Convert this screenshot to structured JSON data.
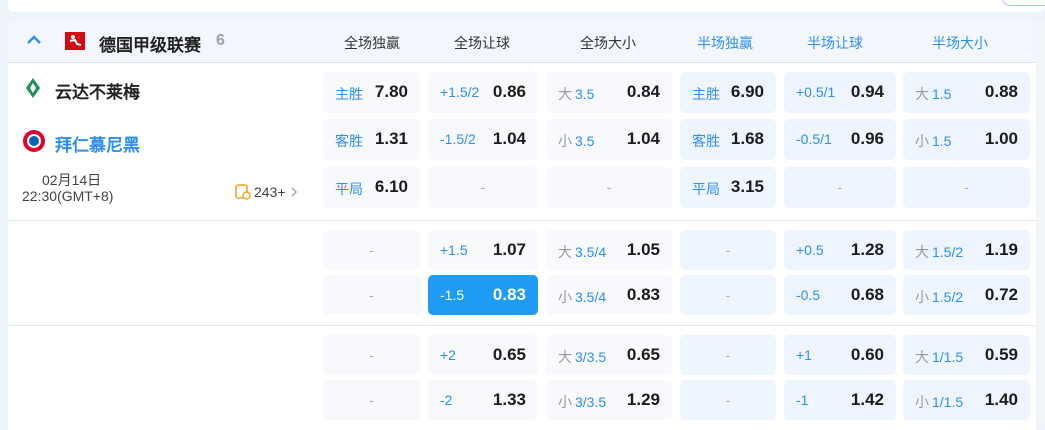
{
  "league": {
    "name": "德国甲级联赛",
    "count": "6"
  },
  "columns": [
    "全场独赢",
    "全场让球",
    "全场大小",
    "半场独赢",
    "半场让球",
    "半场大小"
  ],
  "match": {
    "home": "云达不莱梅",
    "away": "拜仁慕尼黑",
    "date": "02月14日",
    "time": "22:30(GMT+8)",
    "markets": "243+"
  },
  "colors": {
    "accent": "#2f8ff0",
    "selected": "#1e9bf5",
    "league_logo": "#d20a11"
  },
  "blocks": [
    {
      "rows": [
        [
          {
            "line": "主胜",
            "odds": "7.80"
          },
          {
            "line": "+1.5/2",
            "odds": "0.86"
          },
          {
            "prefix": "大",
            "line": "3.5",
            "odds": "0.84"
          },
          {
            "line": "主胜",
            "odds": "6.90"
          },
          {
            "line": "+0.5/1",
            "odds": "0.94"
          },
          {
            "prefix": "大",
            "line": "1.5",
            "odds": "0.88"
          }
        ],
        [
          {
            "line": "客胜",
            "odds": "1.31"
          },
          {
            "line": "-1.5/2",
            "odds": "1.04"
          },
          {
            "prefix": "小",
            "line": "3.5",
            "odds": "1.04"
          },
          {
            "line": "客胜",
            "odds": "1.68"
          },
          {
            "line": "-0.5/1",
            "odds": "0.96"
          },
          {
            "prefix": "小",
            "line": "1.5",
            "odds": "1.00"
          }
        ],
        [
          {
            "line": "平局",
            "odds": "6.10"
          },
          {
            "dash": "-"
          },
          {
            "dash": "-"
          },
          {
            "line": "平局",
            "odds": "3.15"
          },
          {
            "dash": "-"
          },
          {
            "dash": "-"
          }
        ]
      ]
    },
    {
      "rows": [
        [
          {
            "dash": "-"
          },
          {
            "line": "+1.5",
            "odds": "1.07"
          },
          {
            "prefix": "大",
            "line": "3.5/4",
            "odds": "1.05"
          },
          {
            "dash": "-"
          },
          {
            "line": "+0.5",
            "odds": "1.28"
          },
          {
            "prefix": "大",
            "line": "1.5/2",
            "odds": "1.19"
          }
        ],
        [
          {
            "dash": "-"
          },
          {
            "line": "-1.5",
            "odds": "0.83",
            "selected": true
          },
          {
            "prefix": "小",
            "line": "3.5/4",
            "odds": "0.83"
          },
          {
            "dash": "-"
          },
          {
            "line": "-0.5",
            "odds": "0.68"
          },
          {
            "prefix": "小",
            "line": "1.5/2",
            "odds": "0.72"
          }
        ]
      ]
    },
    {
      "rows": [
        [
          {
            "dash": "-"
          },
          {
            "line": "+2",
            "odds": "0.65"
          },
          {
            "prefix": "大",
            "line": "3/3.5",
            "odds": "0.65"
          },
          {
            "dash": "-"
          },
          {
            "line": "+1",
            "odds": "0.60"
          },
          {
            "prefix": "大",
            "line": "1/1.5",
            "odds": "0.59"
          }
        ],
        [
          {
            "dash": "-"
          },
          {
            "line": "-2",
            "odds": "1.33"
          },
          {
            "prefix": "小",
            "line": "3/3.5",
            "odds": "1.29"
          },
          {
            "dash": "-"
          },
          {
            "line": "-1",
            "odds": "1.42"
          },
          {
            "prefix": "小",
            "line": "1/1.5",
            "odds": "1.40"
          }
        ]
      ]
    }
  ]
}
